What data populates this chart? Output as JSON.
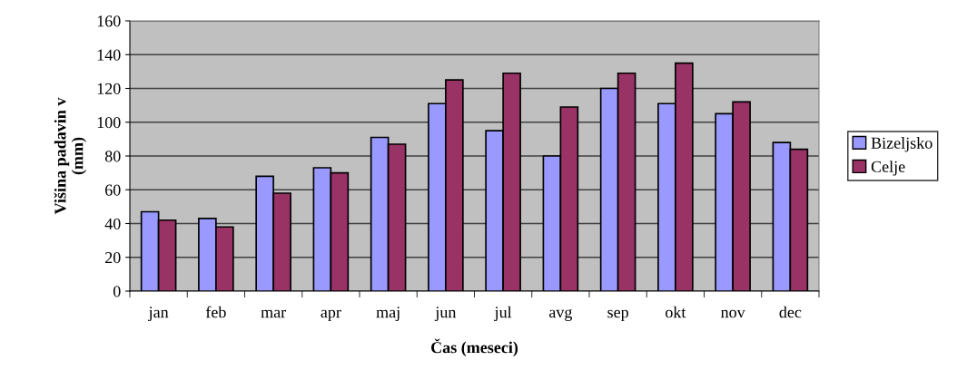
{
  "chart_data": {
    "type": "bar",
    "xlabel": "Čas (meseci)",
    "ylabel": "Višina padavin v\n(mm)",
    "categories": [
      "jan",
      "feb",
      "mar",
      "apr",
      "maj",
      "jun",
      "jul",
      "avg",
      "sep",
      "okt",
      "nov",
      "dec"
    ],
    "series": [
      {
        "name": "Bizeljsko",
        "color": "#9999ff",
        "values": [
          47,
          43,
          68,
          73,
          91,
          111,
          95,
          80,
          120,
          111,
          105,
          88
        ]
      },
      {
        "name": "Celje",
        "color": "#993366",
        "values": [
          42,
          38,
          58,
          70,
          87,
          125,
          129,
          109,
          129,
          135,
          112,
          84
        ]
      }
    ],
    "ylim": [
      0,
      160
    ],
    "yticks": [
      0,
      20,
      40,
      60,
      80,
      100,
      120,
      140,
      160
    ],
    "grid": "y",
    "legend": "right"
  }
}
